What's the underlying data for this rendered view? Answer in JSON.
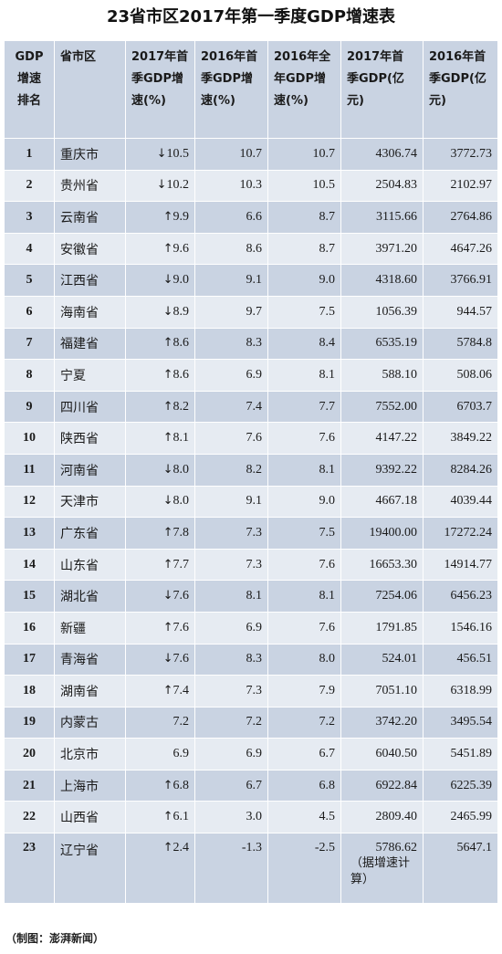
{
  "chart_data": {
    "type": "table",
    "title": "23省市区2017年第一季度GDP增速表",
    "columns": [
      "GDP增速排名",
      "省市区",
      "2017年首季GDP增速(%)",
      "2016年首季GDP增速(%)",
      "2016年全年GDP增速(%)",
      "2017年首季GDP(亿元)",
      "2016年首季GDP(亿元)"
    ],
    "rows": [
      {
        "rank": "1",
        "name": "重庆市",
        "arrow": "↓",
        "g2017q1": "10.5",
        "g2016q1": "10.7",
        "g2016": "10.7",
        "gdp2017q1": "4306.74",
        "gdp2016q1": "3772.73"
      },
      {
        "rank": "2",
        "name": "贵州省",
        "arrow": "↓",
        "g2017q1": "10.2",
        "g2016q1": "10.3",
        "g2016": "10.5",
        "gdp2017q1": "2504.83",
        "gdp2016q1": "2102.97"
      },
      {
        "rank": "3",
        "name": "云南省",
        "arrow": "↑",
        "g2017q1": "9.9",
        "g2016q1": "6.6",
        "g2016": "8.7",
        "gdp2017q1": "3115.66",
        "gdp2016q1": "2764.86"
      },
      {
        "rank": "4",
        "name": "安徽省",
        "arrow": "↑",
        "g2017q1": "9.6",
        "g2016q1": "8.6",
        "g2016": "8.7",
        "gdp2017q1": "3971.20",
        "gdp2016q1": "4647.26"
      },
      {
        "rank": "5",
        "name": "江西省",
        "arrow": "↓",
        "g2017q1": "9.0",
        "g2016q1": "9.1",
        "g2016": "9.0",
        "gdp2017q1": "4318.60",
        "gdp2016q1": "3766.91"
      },
      {
        "rank": "6",
        "name": "海南省",
        "arrow": "↓",
        "g2017q1": "8.9",
        "g2016q1": "9.7",
        "g2016": "7.5",
        "gdp2017q1": "1056.39",
        "gdp2016q1": "944.57"
      },
      {
        "rank": "7",
        "name": "福建省",
        "arrow": "↑",
        "g2017q1": "8.6",
        "g2016q1": "8.3",
        "g2016": "8.4",
        "gdp2017q1": "6535.19",
        "gdp2016q1": "5784.8"
      },
      {
        "rank": "8",
        "name": "宁夏",
        "arrow": "↑",
        "g2017q1": "8.6",
        "g2016q1": "6.9",
        "g2016": "8.1",
        "gdp2017q1": "588.10",
        "gdp2016q1": "508.06"
      },
      {
        "rank": "9",
        "name": "四川省",
        "arrow": "↑",
        "g2017q1": "8.2",
        "g2016q1": "7.4",
        "g2016": "7.7",
        "gdp2017q1": "7552.00",
        "gdp2016q1": "6703.7"
      },
      {
        "rank": "10",
        "name": "陕西省",
        "arrow": "↑",
        "g2017q1": "8.1",
        "g2016q1": "7.6",
        "g2016": "7.6",
        "gdp2017q1": "4147.22",
        "gdp2016q1": "3849.22"
      },
      {
        "rank": "11",
        "name": "河南省",
        "arrow": "↓",
        "g2017q1": "8.0",
        "g2016q1": "8.2",
        "g2016": "8.1",
        "gdp2017q1": "9392.22",
        "gdp2016q1": "8284.26"
      },
      {
        "rank": "12",
        "name": "天津市",
        "arrow": "↓",
        "g2017q1": "8.0",
        "g2016q1": "9.1",
        "g2016": "9.0",
        "gdp2017q1": "4667.18",
        "gdp2016q1": "4039.44"
      },
      {
        "rank": "13",
        "name": "广东省",
        "arrow": "↑",
        "g2017q1": "7.8",
        "g2016q1": "7.3",
        "g2016": "7.5",
        "gdp2017q1": "19400.00",
        "gdp2016q1": "17272.24"
      },
      {
        "rank": "14",
        "name": "山东省",
        "arrow": "↑",
        "g2017q1": "7.7",
        "g2016q1": "7.3",
        "g2016": "7.6",
        "gdp2017q1": "16653.30",
        "gdp2016q1": "14914.77"
      },
      {
        "rank": "15",
        "name": "湖北省",
        "arrow": "↓",
        "g2017q1": "7.6",
        "g2016q1": "8.1",
        "g2016": "8.1",
        "gdp2017q1": "7254.06",
        "gdp2016q1": "6456.23"
      },
      {
        "rank": "16",
        "name": "新疆",
        "arrow": "↑",
        "g2017q1": "7.6",
        "g2016q1": "6.9",
        "g2016": "7.6",
        "gdp2017q1": "1791.85",
        "gdp2016q1": "1546.16"
      },
      {
        "rank": "17",
        "name": "青海省",
        "arrow": "↓",
        "g2017q1": "7.6",
        "g2016q1": "8.3",
        "g2016": "8.0",
        "gdp2017q1": "524.01",
        "gdp2016q1": "456.51"
      },
      {
        "rank": "18",
        "name": "湖南省",
        "arrow": "↑",
        "g2017q1": "7.4",
        "g2016q1": "7.3",
        "g2016": "7.9",
        "gdp2017q1": "7051.10",
        "gdp2016q1": "6318.99"
      },
      {
        "rank": "19",
        "name": "内蒙古",
        "arrow": "",
        "g2017q1": "7.2",
        "g2016q1": "7.2",
        "g2016": "7.2",
        "gdp2017q1": "3742.20",
        "gdp2016q1": "3495.54"
      },
      {
        "rank": "20",
        "name": "北京市",
        "arrow": "",
        "g2017q1": "6.9",
        "g2016q1": "6.9",
        "g2016": "6.7",
        "gdp2017q1": "6040.50",
        "gdp2016q1": "5451.89"
      },
      {
        "rank": "21",
        "name": "上海市",
        "arrow": "↑",
        "g2017q1": "6.8",
        "g2016q1": "6.7",
        "g2016": "6.8",
        "gdp2017q1": "6922.84",
        "gdp2016q1": "6225.39"
      },
      {
        "rank": "22",
        "name": "山西省",
        "arrow": "↑",
        "g2017q1": "6.1",
        "g2016q1": "3.0",
        "g2016": "4.5",
        "gdp2017q1": "2809.40",
        "gdp2016q1": "2465.99"
      },
      {
        "rank": "23",
        "name": "辽宁省",
        "arrow": "↑",
        "g2017q1": "2.4",
        "g2016q1": "-1.3",
        "g2016": "-2.5",
        "gdp2017q1": "5786.62",
        "gdp2016q1": "5647.1",
        "note": "（据增速计算）"
      }
    ]
  },
  "header": {
    "rank": [
      "GDP",
      "增速",
      "排名"
    ],
    "name": "省市区",
    "g2017q1": [
      "2017年首",
      "季GDP增",
      "速(%)"
    ],
    "g2016q1": [
      "2016年首",
      "季GDP增",
      "速(%)"
    ],
    "g2016": [
      "2016年全",
      "年GDP增",
      "速(%)"
    ],
    "gdp2017q1": [
      "2017年首",
      "季GDP(亿",
      "元)"
    ],
    "gdp2016q1": [
      "2016年首",
      "季GDP(亿",
      "元)"
    ]
  },
  "credit": "（制图：澎湃新闻）",
  "colors": {
    "row_dark": "#c9d3e2",
    "row_light": "#e6ebf2"
  }
}
